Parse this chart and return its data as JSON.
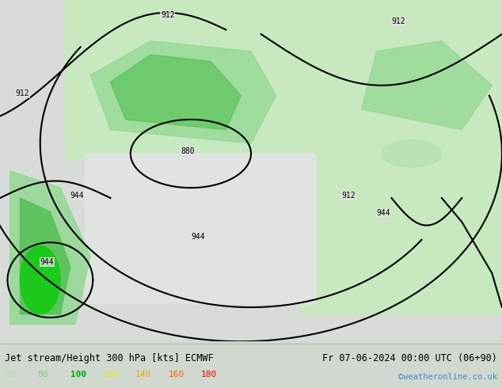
{
  "title_left": "Jet stream/Height 300 hPa [kts] ECMWF",
  "title_right": "Fr 07-06-2024 00:00 UTC (06+90)",
  "credit": "©weatheronline.co.uk",
  "legend_values": [
    60,
    80,
    100,
    120,
    140,
    160,
    180
  ],
  "legend_colors": [
    "#b0d8b0",
    "#90c890",
    "#00aa00",
    "#e8e800",
    "#ffa500",
    "#ff6000",
    "#ff0000"
  ],
  "bg_color": "#e8e8e8",
  "figsize": [
    6.34,
    4.9
  ],
  "dpi": 100
}
